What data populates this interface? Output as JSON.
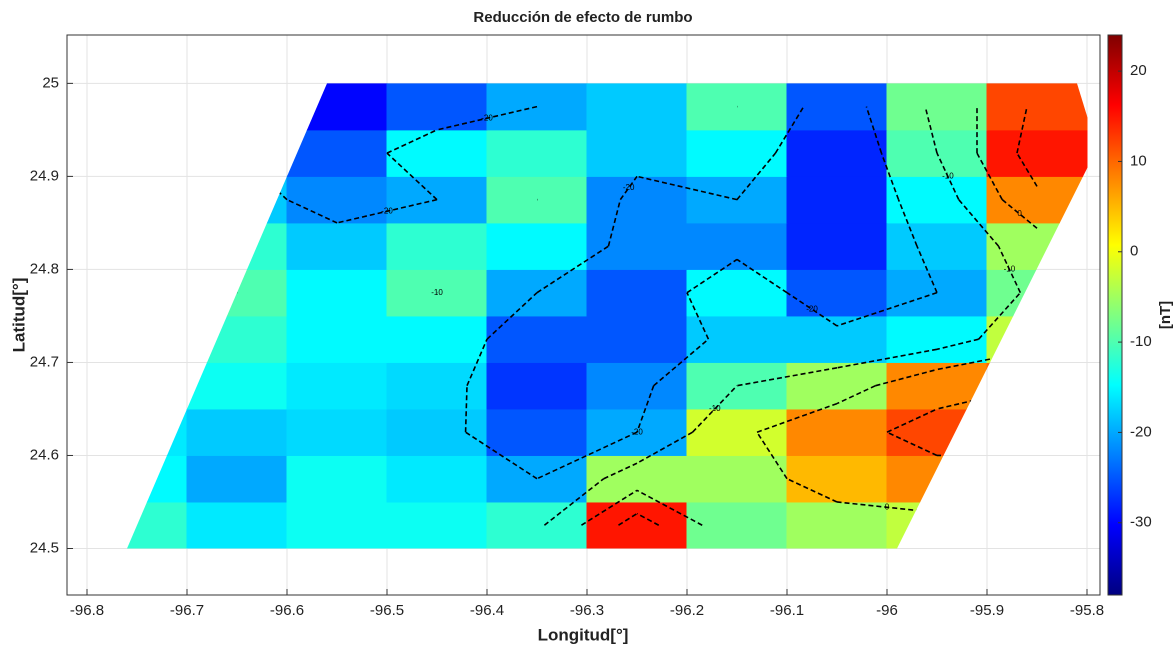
{
  "chart_data": {
    "type": "contour",
    "title": "Reducción de efecto de rumbo",
    "xlabel": "Longitud[°]",
    "ylabel": "Latitud[°]",
    "colorbar_label": "[nT]",
    "x": [
      -96.75,
      -96.65,
      -96.55,
      -96.45,
      -96.35,
      -96.25,
      -96.15,
      -96.05,
      -95.95,
      -95.85
    ],
    "y": [
      24.525,
      24.575,
      24.625,
      24.675,
      24.725,
      24.775,
      24.825,
      24.875,
      24.925,
      24.975
    ],
    "z": [
      [
        -12,
        -16,
        -14,
        -14,
        -12,
        15,
        -8,
        -5,
        -3,
        -5
      ],
      [
        -15,
        -20,
        -14,
        -16,
        -20,
        -5,
        -5,
        5,
        8,
        5
      ],
      [
        -16,
        -18,
        -17,
        -18,
        -25,
        -20,
        -2,
        8,
        12,
        15
      ],
      [
        -16,
        -14,
        -16,
        -17,
        -27,
        -22,
        -10,
        -5,
        8,
        10
      ],
      [
        -15,
        -12,
        -15,
        -15,
        -25,
        -25,
        -18,
        -18,
        -15,
        -3
      ],
      [
        -14,
        -10,
        -15,
        -10,
        -20,
        -25,
        -15,
        -25,
        -20,
        -8
      ],
      [
        -14,
        -12,
        -18,
        -12,
        -15,
        -22,
        -22,
        -28,
        -18,
        -5
      ],
      [
        -16,
        -18,
        -22,
        -20,
        -10,
        -22,
        -20,
        -28,
        -15,
        8
      ],
      [
        -18,
        -20,
        -25,
        -15,
        -12,
        -18,
        -15,
        -28,
        -10,
        15
      ],
      [
        -18,
        -22,
        -30,
        -25,
        -20,
        -18,
        -10,
        -25,
        -8,
        12
      ]
    ],
    "outline": {
      "x": [
        -96.76,
        -95.99,
        -95.79,
        -95.81,
        -96.56
      ],
      "y": [
        24.5,
        24.5,
        24.93,
        25.0,
        25.0
      ]
    },
    "contour_levels": [
      -20,
      -10,
      0,
      10
    ],
    "xlim": [
      -96.82,
      -95.787
    ],
    "ylim": [
      24.45,
      25.052
    ],
    "xticks": [
      -96.8,
      -96.7,
      -96.6,
      -96.5,
      -96.4,
      -96.3,
      -96.2,
      -96.1,
      -96,
      -95.9,
      -95.8
    ],
    "yticks": [
      24.5,
      24.6,
      24.7,
      24.8,
      24.9,
      25
    ],
    "clim": [
      -38,
      24
    ],
    "cticks": [
      -30,
      -20,
      -10,
      0,
      10,
      20
    ],
    "colormap": "jet",
    "grid": true
  }
}
